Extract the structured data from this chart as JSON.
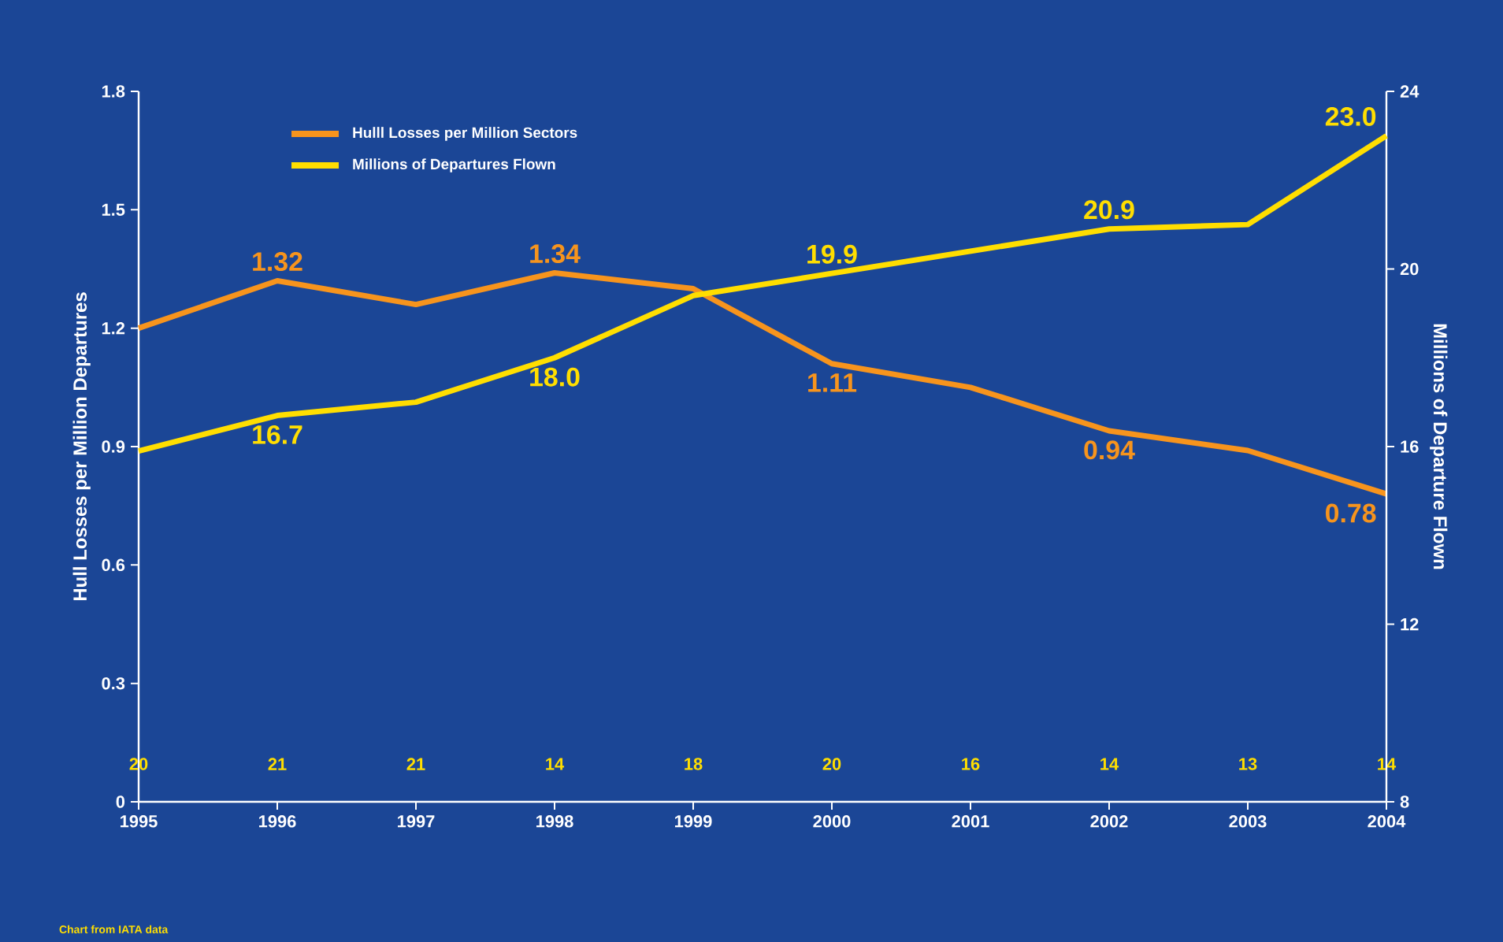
{
  "chart_data": {
    "type": "line",
    "xlabel": null,
    "ylabel": "Hull Losses per Million Departures",
    "y2label": "Millions of Departure Flown",
    "categories": [
      "1995",
      "1996",
      "1997",
      "1998",
      "1999",
      "2000",
      "2001",
      "2002",
      "2003",
      "2004"
    ],
    "series": [
      {
        "name": "Hulll Losses per Million Sectors",
        "color": "#f7941d",
        "values": [
          1.2,
          1.32,
          1.26,
          1.34,
          1.3,
          1.11,
          1.05,
          0.94,
          0.89,
          0.78
        ],
        "value_labels": [
          null,
          "1.32",
          null,
          "1.34",
          null,
          "1.11",
          null,
          "0.94",
          null,
          "0.78"
        ]
      },
      {
        "name": "Millions of Departures Flown",
        "color": "#ffde00",
        "axis": "y2",
        "values": [
          15.9,
          16.7,
          17.0,
          18.0,
          19.4,
          19.9,
          20.4,
          20.9,
          21.0,
          23.0
        ],
        "value_labels": [
          null,
          "16.7",
          null,
          "18.0",
          null,
          "19.9",
          null,
          "20.9",
          null,
          "23.0"
        ]
      }
    ],
    "ylim": [
      0,
      1.8
    ],
    "yticks": [
      0,
      0.3,
      0.6,
      0.9,
      1.2,
      1.5,
      1.8
    ],
    "y2lim": [
      8,
      24
    ],
    "y2ticks": [
      8,
      12,
      16,
      20,
      24
    ],
    "grid": false,
    "legend": "top left",
    "marker": "none",
    "line_style": "solid",
    "annotations": [
      "20",
      "21",
      "21",
      "14",
      "18",
      "20",
      "16",
      "14",
      "13",
      "14",
      "Chart from IATA data"
    ]
  }
}
